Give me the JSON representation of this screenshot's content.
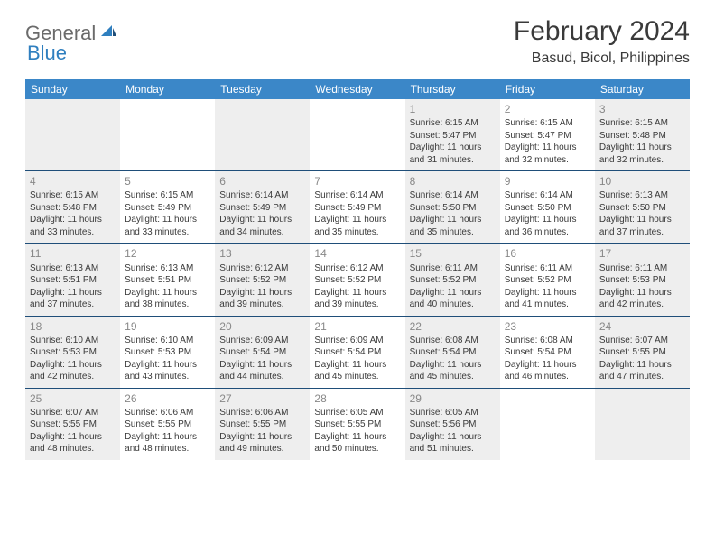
{
  "logo": {
    "general": "General",
    "blue": "Blue"
  },
  "title": "February 2024",
  "location": "Basud, Bicol, Philippines",
  "colors": {
    "header_bg": "#3b87c8",
    "header_text": "#ffffff",
    "week_divider": "#1f4e79",
    "shade_bg": "#eeeeee",
    "day_number": "#888888",
    "body_text": "#3a3a3a",
    "logo_gray": "#6b6b6b",
    "logo_blue": "#2f7fbf"
  },
  "weekdays": [
    "Sunday",
    "Monday",
    "Tuesday",
    "Wednesday",
    "Thursday",
    "Friday",
    "Saturday"
  ],
  "weeks": [
    [
      {
        "shade": true
      },
      {},
      {
        "shade": true
      },
      {},
      {
        "shade": true,
        "num": "1",
        "sunrise": "Sunrise: 6:15 AM",
        "sunset": "Sunset: 5:47 PM",
        "d1": "Daylight: 11 hours",
        "d2": "and 31 minutes."
      },
      {
        "num": "2",
        "sunrise": "Sunrise: 6:15 AM",
        "sunset": "Sunset: 5:47 PM",
        "d1": "Daylight: 11 hours",
        "d2": "and 32 minutes."
      },
      {
        "shade": true,
        "num": "3",
        "sunrise": "Sunrise: 6:15 AM",
        "sunset": "Sunset: 5:48 PM",
        "d1": "Daylight: 11 hours",
        "d2": "and 32 minutes."
      }
    ],
    [
      {
        "shade": true,
        "num": "4",
        "sunrise": "Sunrise: 6:15 AM",
        "sunset": "Sunset: 5:48 PM",
        "d1": "Daylight: 11 hours",
        "d2": "and 33 minutes."
      },
      {
        "num": "5",
        "sunrise": "Sunrise: 6:15 AM",
        "sunset": "Sunset: 5:49 PM",
        "d1": "Daylight: 11 hours",
        "d2": "and 33 minutes."
      },
      {
        "shade": true,
        "num": "6",
        "sunrise": "Sunrise: 6:14 AM",
        "sunset": "Sunset: 5:49 PM",
        "d1": "Daylight: 11 hours",
        "d2": "and 34 minutes."
      },
      {
        "num": "7",
        "sunrise": "Sunrise: 6:14 AM",
        "sunset": "Sunset: 5:49 PM",
        "d1": "Daylight: 11 hours",
        "d2": "and 35 minutes."
      },
      {
        "shade": true,
        "num": "8",
        "sunrise": "Sunrise: 6:14 AM",
        "sunset": "Sunset: 5:50 PM",
        "d1": "Daylight: 11 hours",
        "d2": "and 35 minutes."
      },
      {
        "num": "9",
        "sunrise": "Sunrise: 6:14 AM",
        "sunset": "Sunset: 5:50 PM",
        "d1": "Daylight: 11 hours",
        "d2": "and 36 minutes."
      },
      {
        "shade": true,
        "num": "10",
        "sunrise": "Sunrise: 6:13 AM",
        "sunset": "Sunset: 5:50 PM",
        "d1": "Daylight: 11 hours",
        "d2": "and 37 minutes."
      }
    ],
    [
      {
        "shade": true,
        "num": "11",
        "sunrise": "Sunrise: 6:13 AM",
        "sunset": "Sunset: 5:51 PM",
        "d1": "Daylight: 11 hours",
        "d2": "and 37 minutes."
      },
      {
        "num": "12",
        "sunrise": "Sunrise: 6:13 AM",
        "sunset": "Sunset: 5:51 PM",
        "d1": "Daylight: 11 hours",
        "d2": "and 38 minutes."
      },
      {
        "shade": true,
        "num": "13",
        "sunrise": "Sunrise: 6:12 AM",
        "sunset": "Sunset: 5:52 PM",
        "d1": "Daylight: 11 hours",
        "d2": "and 39 minutes."
      },
      {
        "num": "14",
        "sunrise": "Sunrise: 6:12 AM",
        "sunset": "Sunset: 5:52 PM",
        "d1": "Daylight: 11 hours",
        "d2": "and 39 minutes."
      },
      {
        "shade": true,
        "num": "15",
        "sunrise": "Sunrise: 6:11 AM",
        "sunset": "Sunset: 5:52 PM",
        "d1": "Daylight: 11 hours",
        "d2": "and 40 minutes."
      },
      {
        "num": "16",
        "sunrise": "Sunrise: 6:11 AM",
        "sunset": "Sunset: 5:52 PM",
        "d1": "Daylight: 11 hours",
        "d2": "and 41 minutes."
      },
      {
        "shade": true,
        "num": "17",
        "sunrise": "Sunrise: 6:11 AM",
        "sunset": "Sunset: 5:53 PM",
        "d1": "Daylight: 11 hours",
        "d2": "and 42 minutes."
      }
    ],
    [
      {
        "shade": true,
        "num": "18",
        "sunrise": "Sunrise: 6:10 AM",
        "sunset": "Sunset: 5:53 PM",
        "d1": "Daylight: 11 hours",
        "d2": "and 42 minutes."
      },
      {
        "num": "19",
        "sunrise": "Sunrise: 6:10 AM",
        "sunset": "Sunset: 5:53 PM",
        "d1": "Daylight: 11 hours",
        "d2": "and 43 minutes."
      },
      {
        "shade": true,
        "num": "20",
        "sunrise": "Sunrise: 6:09 AM",
        "sunset": "Sunset: 5:54 PM",
        "d1": "Daylight: 11 hours",
        "d2": "and 44 minutes."
      },
      {
        "num": "21",
        "sunrise": "Sunrise: 6:09 AM",
        "sunset": "Sunset: 5:54 PM",
        "d1": "Daylight: 11 hours",
        "d2": "and 45 minutes."
      },
      {
        "shade": true,
        "num": "22",
        "sunrise": "Sunrise: 6:08 AM",
        "sunset": "Sunset: 5:54 PM",
        "d1": "Daylight: 11 hours",
        "d2": "and 45 minutes."
      },
      {
        "num": "23",
        "sunrise": "Sunrise: 6:08 AM",
        "sunset": "Sunset: 5:54 PM",
        "d1": "Daylight: 11 hours",
        "d2": "and 46 minutes."
      },
      {
        "shade": true,
        "num": "24",
        "sunrise": "Sunrise: 6:07 AM",
        "sunset": "Sunset: 5:55 PM",
        "d1": "Daylight: 11 hours",
        "d2": "and 47 minutes."
      }
    ],
    [
      {
        "shade": true,
        "num": "25",
        "sunrise": "Sunrise: 6:07 AM",
        "sunset": "Sunset: 5:55 PM",
        "d1": "Daylight: 11 hours",
        "d2": "and 48 minutes."
      },
      {
        "num": "26",
        "sunrise": "Sunrise: 6:06 AM",
        "sunset": "Sunset: 5:55 PM",
        "d1": "Daylight: 11 hours",
        "d2": "and 48 minutes."
      },
      {
        "shade": true,
        "num": "27",
        "sunrise": "Sunrise: 6:06 AM",
        "sunset": "Sunset: 5:55 PM",
        "d1": "Daylight: 11 hours",
        "d2": "and 49 minutes."
      },
      {
        "num": "28",
        "sunrise": "Sunrise: 6:05 AM",
        "sunset": "Sunset: 5:55 PM",
        "d1": "Daylight: 11 hours",
        "d2": "and 50 minutes."
      },
      {
        "shade": true,
        "num": "29",
        "sunrise": "Sunrise: 6:05 AM",
        "sunset": "Sunset: 5:56 PM",
        "d1": "Daylight: 11 hours",
        "d2": "and 51 minutes."
      },
      {},
      {
        "shade": true
      }
    ]
  ]
}
